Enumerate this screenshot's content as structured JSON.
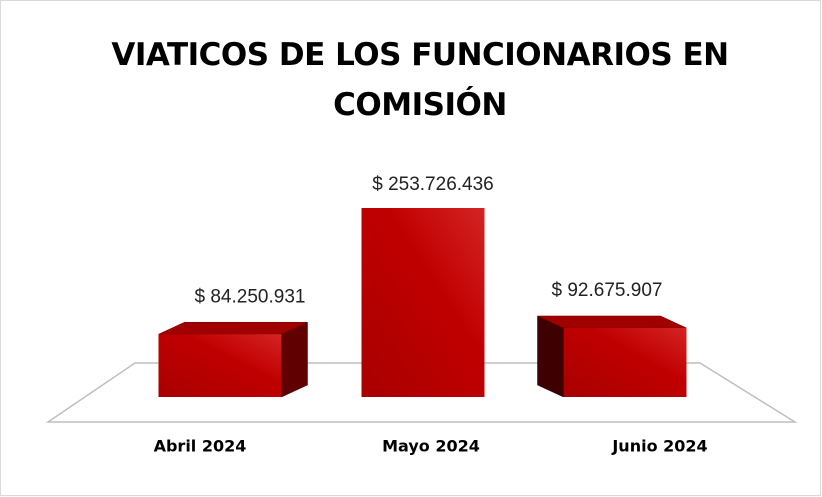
{
  "chart_data": {
    "type": "bar3d",
    "title": "VIATICOS DE LOS FUNCIONARIOS EN COMISIÓN",
    "categories": [
      "Abril 2024",
      "Mayo 2024",
      "Junio 2024"
    ],
    "values": [
      84250931,
      253726436,
      92675907
    ],
    "value_labels": [
      "$ 84.250.931",
      "$ 253.726.436",
      "$ 92.675.907"
    ],
    "color": "#c00000"
  }
}
